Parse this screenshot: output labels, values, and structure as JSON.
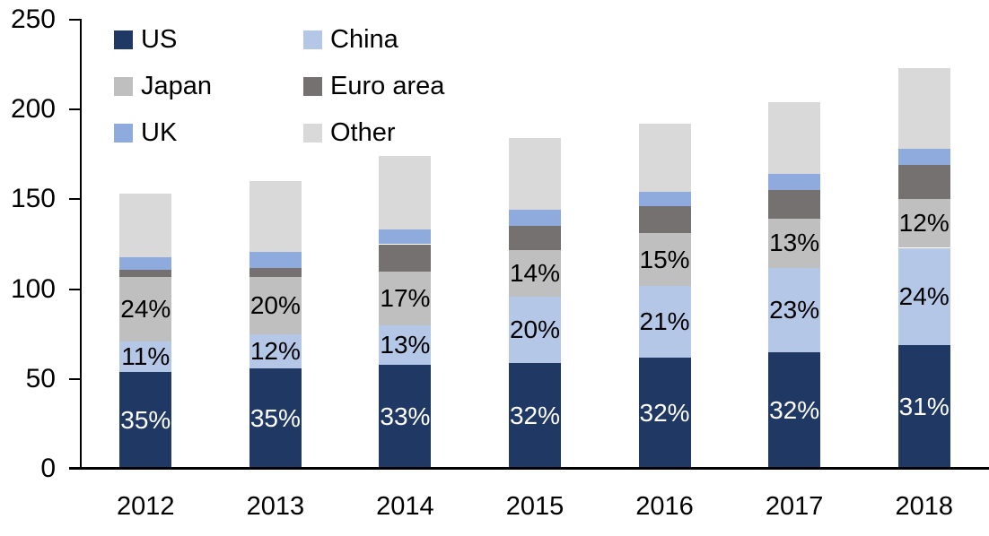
{
  "chart_data": {
    "type": "stacked-bar",
    "categories": [
      "2012",
      "2013",
      "2014",
      "2015",
      "2016",
      "2017",
      "2018"
    ],
    "series": [
      {
        "name": "US",
        "color": "#1f3864",
        "values": [
          54,
          56,
          58,
          59,
          62,
          65,
          69
        ],
        "pct_labels": [
          "35%",
          "35%",
          "33%",
          "32%",
          "32%",
          "32%",
          "31%"
        ],
        "label_color": "#ffffff"
      },
      {
        "name": "China",
        "color": "#b4c7e7",
        "values": [
          17,
          19,
          22,
          37,
          40,
          47,
          54
        ],
        "pct_labels": [
          "11%",
          "12%",
          "13%",
          "20%",
          "21%",
          "23%",
          "24%"
        ],
        "label_color": "#000000"
      },
      {
        "name": "Japan",
        "color": "#bfbfbf",
        "values": [
          36,
          32,
          30,
          26,
          29,
          27,
          27
        ],
        "pct_labels": [
          "24%",
          "20%",
          "17%",
          "14%",
          "15%",
          "13%",
          "12%"
        ],
        "label_color": "#000000"
      },
      {
        "name": "Euro area",
        "color": "#767171",
        "values": [
          4,
          5,
          15,
          13,
          15,
          16,
          19
        ]
      },
      {
        "name": "UK",
        "color": "#8faadc",
        "values": [
          7,
          9,
          8,
          9,
          8,
          9,
          9
        ]
      },
      {
        "name": "Other",
        "color": "#d9d9d9",
        "values": [
          35,
          39,
          41,
          40,
          38,
          40,
          45
        ]
      }
    ],
    "totals": [
      153,
      160,
      174,
      184,
      192,
      204,
      223
    ],
    "ylim": [
      0,
      250
    ],
    "yticks": [
      0,
      50,
      100,
      150,
      200,
      250
    ],
    "grid": false,
    "legend_position": "top-left",
    "legend_columns": 2,
    "axis_color": "#000000"
  }
}
